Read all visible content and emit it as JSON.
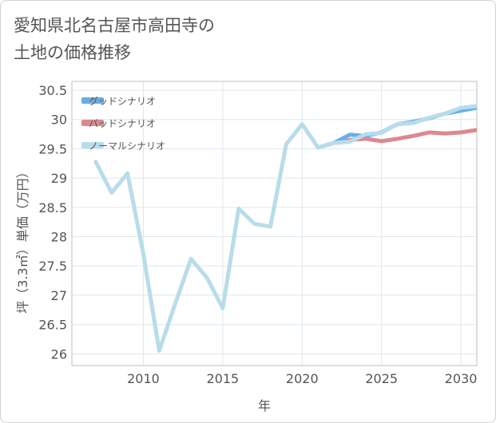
{
  "title": "愛知県北名古屋市高田寺の\n土地の価格推移",
  "chart_data": {
    "type": "line",
    "title": "愛知県北名古屋市高田寺の土地の価格推移",
    "xlabel": "年",
    "ylabel": "坪（3.3㎡）単価（万円）",
    "xlim": [
      2005.5,
      2031
    ],
    "ylim": [
      25.8,
      30.65
    ],
    "xticks": [
      2010,
      2015,
      2020,
      2025,
      2030
    ],
    "xtick_labels": [
      "2010",
      "2015",
      "2020",
      "2025",
      "2030"
    ],
    "yticks": [
      26,
      26.5,
      27,
      27.5,
      28,
      28.5,
      29,
      29.5,
      30,
      30.5
    ],
    "ytick_labels": [
      "26",
      "26.5",
      "27",
      "27.5",
      "28",
      "28.5",
      "29",
      "29.5",
      "30",
      "30.5"
    ],
    "legend_position": "top-left",
    "series": [
      {
        "name": "グッドシナリオ",
        "color": "#6aaee8",
        "x": [
          2021,
          2022,
          2023,
          2024,
          2025,
          2026,
          2027,
          2028,
          2029,
          2030,
          2031
        ],
        "y": [
          29.52,
          29.6,
          29.74,
          29.72,
          29.78,
          29.92,
          29.96,
          30.02,
          30.1,
          30.15,
          30.2
        ]
      },
      {
        "name": "バッドシナリオ",
        "color": "#dd8890",
        "x": [
          2021,
          2022,
          2023,
          2024,
          2025,
          2026,
          2027,
          2028,
          2029,
          2030,
          2031
        ],
        "y": [
          29.52,
          29.6,
          29.65,
          29.67,
          29.63,
          29.67,
          29.72,
          29.78,
          29.76,
          29.78,
          29.82
        ]
      },
      {
        "name": "ノーマルシナリオ",
        "color": "#b8dcea",
        "x": [
          2007,
          2008,
          2009,
          2010,
          2011,
          2012,
          2013,
          2014,
          2015,
          2016,
          2017,
          2018,
          2019,
          2020,
          2021,
          2022,
          2023,
          2024,
          2025,
          2026,
          2027,
          2028,
          2029,
          2030,
          2031
        ],
        "y": [
          29.28,
          28.75,
          29.08,
          27.7,
          26.05,
          26.85,
          27.62,
          27.3,
          26.78,
          28.48,
          28.22,
          28.17,
          29.58,
          29.92,
          29.52,
          29.6,
          29.62,
          29.75,
          29.77,
          29.92,
          29.94,
          30.03,
          30.1,
          30.2,
          30.23
        ]
      }
    ]
  }
}
